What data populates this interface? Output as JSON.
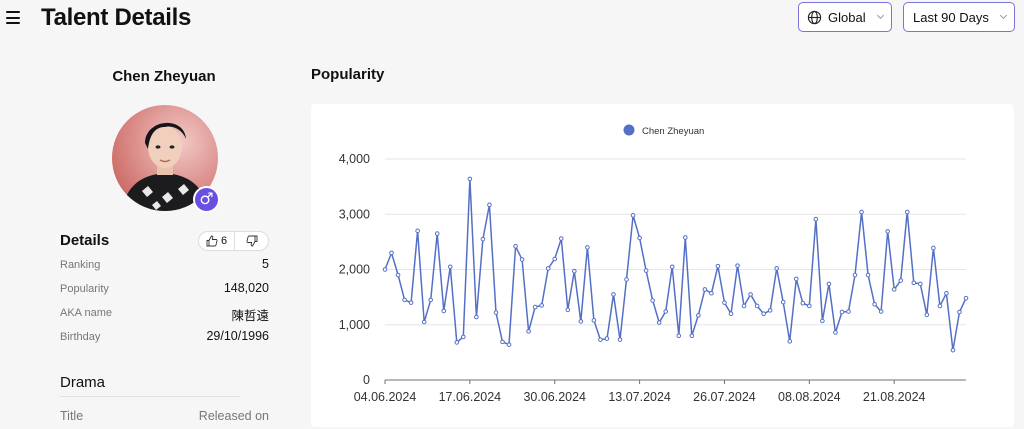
{
  "header": {
    "title": "Talent Details",
    "region": "Global",
    "range": "Last 90 Days"
  },
  "profile": {
    "name": "Chen Zheyuan",
    "gender_symbol": "♂"
  },
  "details": {
    "title": "Details",
    "likes": "6",
    "rows": [
      {
        "label": "Ranking",
        "value": "5"
      },
      {
        "label": "Popularity",
        "value": "148,020"
      },
      {
        "label": "AKA name",
        "value": "陳哲遠"
      },
      {
        "label": "Birthday",
        "value": "29/10/1996"
      }
    ]
  },
  "drama": {
    "title": "Drama",
    "col_title": "Title",
    "col_released": "Released on"
  },
  "popularity": {
    "title": "Popularity"
  },
  "chart_data": {
    "type": "line",
    "title": "",
    "legend": "top-center",
    "series": [
      {
        "name": "Chen Zheyuan",
        "color": "#5470c6",
        "values": [
          2000,
          2300,
          1900,
          1450,
          1400,
          2700,
          1050,
          1450,
          2650,
          1250,
          2050,
          680,
          780,
          3640,
          1140,
          2550,
          3170,
          1220,
          690,
          640,
          2420,
          2180,
          880,
          1320,
          1350,
          2020,
          2190,
          2560,
          1270,
          1970,
          1060,
          2400,
          1080,
          730,
          750,
          1550,
          730,
          1820,
          2980,
          2570,
          1980,
          1440,
          1040,
          1240,
          2050,
          800,
          2580,
          800,
          1170,
          1640,
          1570,
          2060,
          1400,
          1200,
          2070,
          1340,
          1550,
          1340,
          1200,
          1260,
          2020,
          1410,
          700,
          1830,
          1390,
          1340,
          2910,
          1070,
          1740,
          860,
          1230,
          1240,
          1900,
          3040,
          1900,
          1370,
          1240,
          2690,
          1640,
          1800,
          3040,
          1760,
          1740,
          1180,
          2390,
          1340,
          1570,
          540,
          1230,
          1480
        ]
      }
    ],
    "x_labels": [
      "04.06.2024",
      "17.06.2024",
      "30.06.2024",
      "13.07.2024",
      "26.07.2024",
      "08.08.2024",
      "21.08.2024"
    ],
    "y_ticks": [
      "4,000",
      "3,000",
      "2,000",
      "1,000",
      "0"
    ],
    "ylim": [
      0,
      4000
    ],
    "grid": true
  }
}
